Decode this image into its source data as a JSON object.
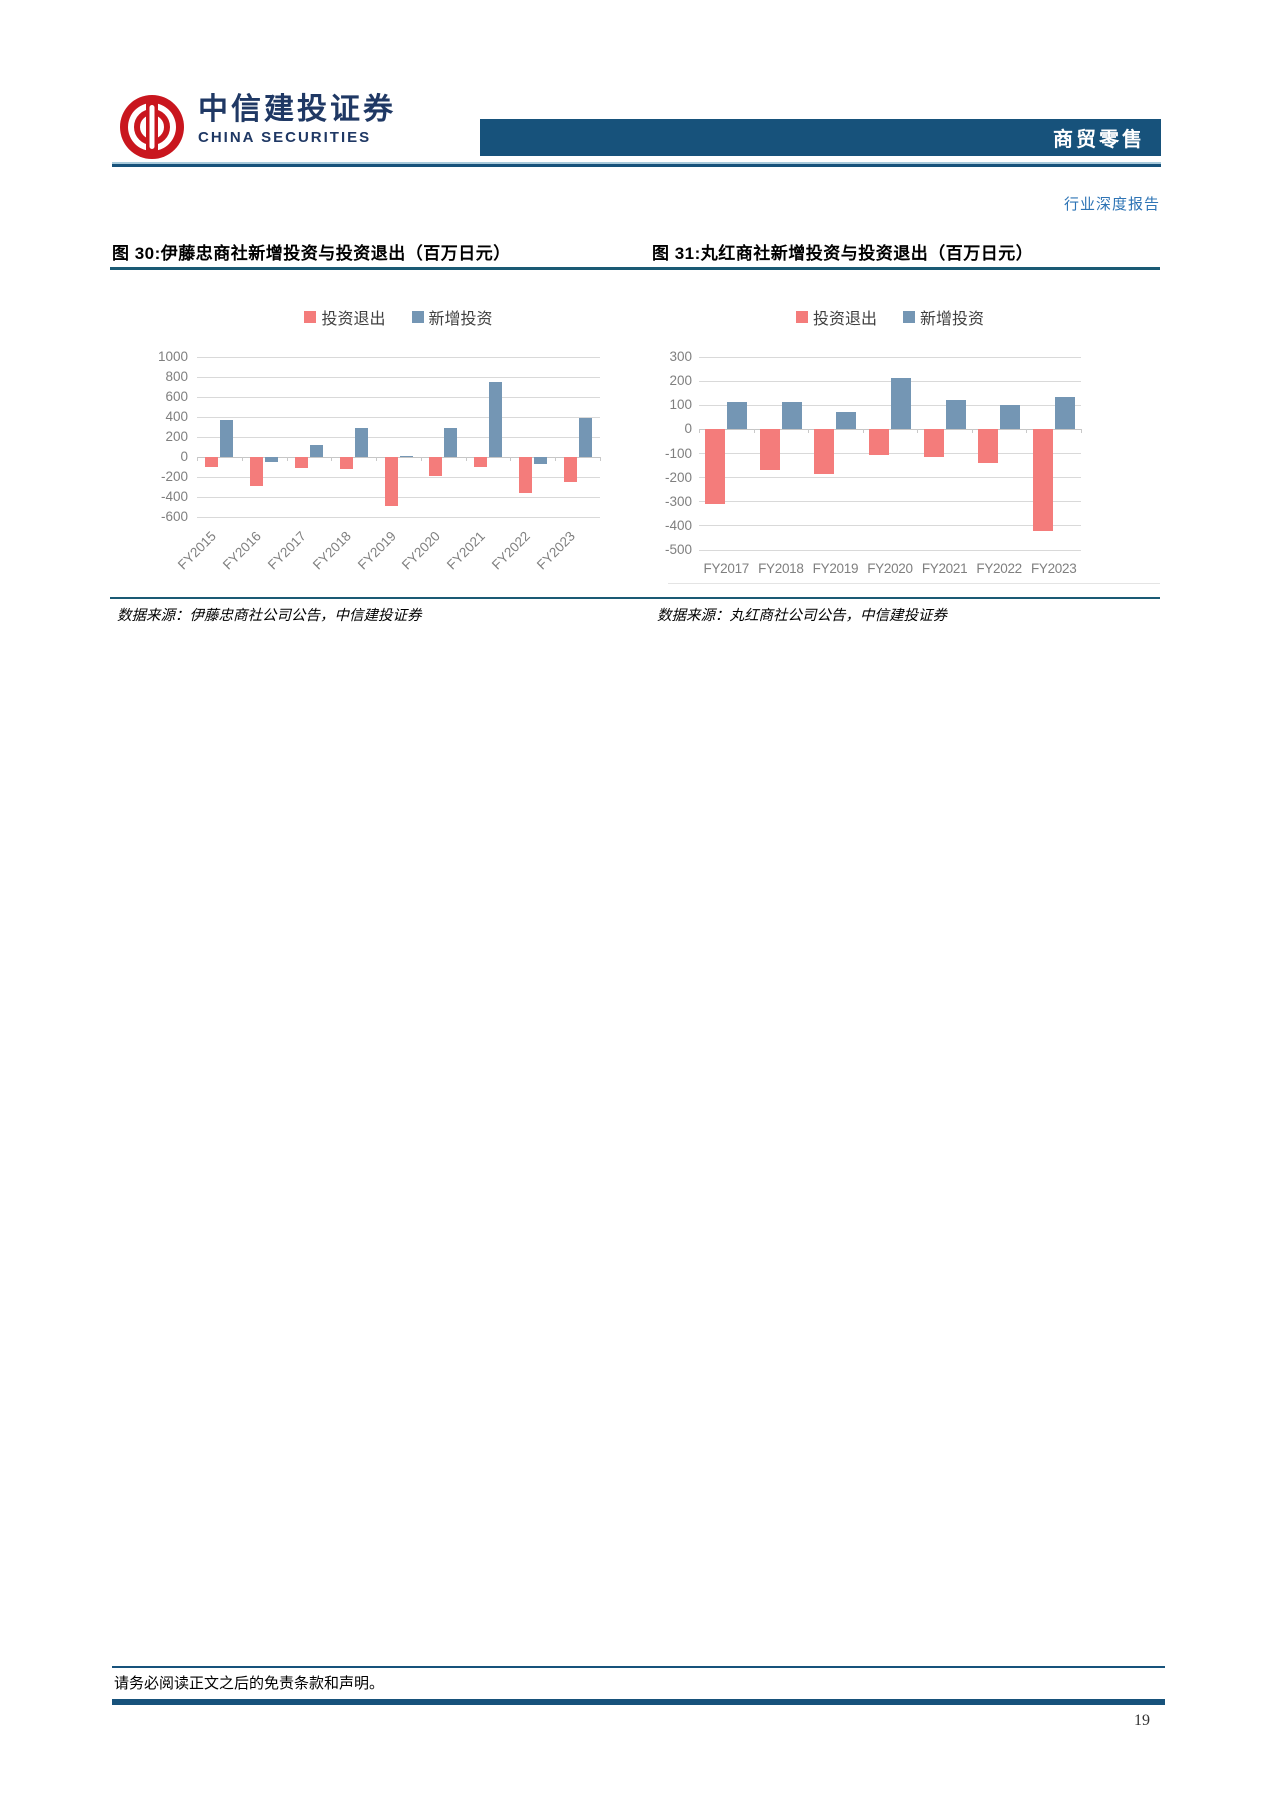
{
  "header": {
    "company_cn": "中信建投证券",
    "company_en": "CHINA SECURITIES",
    "category_badge": "商贸零售",
    "report_type": "行业深度报告",
    "navy": "#17527B",
    "logo_red": "#C9161E",
    "accent_blue": "#2E74B5"
  },
  "figures": [
    {
      "title": "图 30:伊藤忠商社新增投资与投资退出（百万日元）",
      "source": "数据来源：伊藤忠商社公司公告，中信建投证券"
    },
    {
      "title": "图 31:丸红商社新增投资与投资退出（百万日元）",
      "source": "数据来源：丸红商社公司公告，中信建投证券"
    }
  ],
  "chart_data": [
    {
      "type": "bar",
      "title": "图 30:伊藤忠商社新增投资与投资退出（百万日元）",
      "categories": [
        "FY2015",
        "FY2016",
        "FY2017",
        "FY2018",
        "FY2019",
        "FY2020",
        "FY2021",
        "FY2022",
        "FY2023"
      ],
      "series": [
        {
          "name": "投资退出",
          "color": "#F47C7B",
          "values": [
            -95,
            -285,
            -105,
            -120,
            -490,
            -185,
            -100,
            -360,
            -250
          ]
        },
        {
          "name": "新增投资",
          "color": "#7496B4",
          "values": [
            375,
            -45,
            120,
            290,
            15,
            295,
            755,
            -70,
            390
          ]
        }
      ],
      "xlabel": "",
      "ylabel": "",
      "ylim": [
        -600,
        1000
      ],
      "ytick_step": 200,
      "grid": true,
      "legend_position": "top",
      "xtick_rotation": 45,
      "gridline_color": "#D9D9D9",
      "axis_text_color": "#7F7F7F"
    },
    {
      "type": "bar",
      "title": "图 31:丸红商社新增投资与投资退出（百万日元）",
      "categories": [
        "FY2017",
        "FY2018",
        "FY2019",
        "FY2020",
        "FY2021",
        "FY2022",
        "FY2023"
      ],
      "series": [
        {
          "name": "投资退出",
          "color": "#F47C7B",
          "values": [
            -310,
            -170,
            -185,
            -105,
            -115,
            -140,
            -420
          ]
        },
        {
          "name": "新增投资",
          "color": "#7496B4",
          "values": [
            115,
            115,
            70,
            215,
            120,
            100,
            135
          ]
        }
      ],
      "xlabel": "",
      "ylabel": "",
      "ylim": [
        -500,
        300
      ],
      "ytick_step": 100,
      "grid": true,
      "legend_position": "top",
      "xtick_rotation": 0,
      "gridline_color": "#D9D9D9",
      "axis_text_color": "#7F7F7F"
    }
  ],
  "footer": {
    "disclaimer": "请务必阅读正文之后的免责条款和声明。",
    "page_number": "19"
  }
}
